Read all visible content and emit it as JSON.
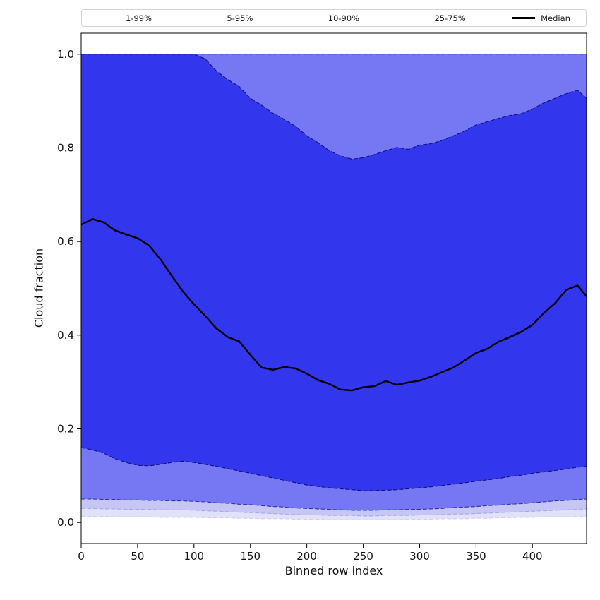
{
  "legend": {
    "items": [
      {
        "label": "1-99%",
        "color": "#d9d9f7",
        "style": "dashed",
        "weight": 1.5
      },
      {
        "label": "5-95%",
        "color": "#bcbcf2",
        "style": "dashed",
        "weight": 1.5
      },
      {
        "label": "10-90%",
        "color": "#6a6cf0",
        "style": "dashed",
        "weight": 1.5
      },
      {
        "label": "25-75%",
        "color": "#3a3ce0",
        "style": "dashed",
        "weight": 1.5
      },
      {
        "label": "Median",
        "color": "#000000",
        "style": "solid",
        "weight": 3
      }
    ]
  },
  "chart_data": {
    "type": "area",
    "title": "",
    "xlabel": "Binned row index",
    "ylabel": "Cloud fraction",
    "xlim": [
      0,
      448
    ],
    "ylim": [
      -0.045,
      1.045
    ],
    "xticks": [
      0,
      50,
      100,
      150,
      200,
      250,
      300,
      350,
      400
    ],
    "yticks": [
      0.0,
      0.2,
      0.4,
      0.6,
      0.8,
      1.0
    ],
    "grid": false,
    "legend_position": "top-outside-horizontal",
    "x": [
      0,
      10,
      20,
      30,
      40,
      50,
      60,
      70,
      80,
      90,
      100,
      110,
      120,
      130,
      140,
      150,
      160,
      170,
      180,
      190,
      200,
      210,
      220,
      230,
      240,
      250,
      260,
      270,
      280,
      290,
      300,
      310,
      320,
      330,
      340,
      350,
      360,
      370,
      380,
      390,
      400,
      410,
      420,
      430,
      440,
      448
    ],
    "bands": [
      {
        "name": "1-99%",
        "low": [
          0.013,
          0.013,
          0.013,
          0.012,
          0.012,
          0.012,
          0.012,
          0.011,
          0.011,
          0.011,
          0.011,
          0.01,
          0.01,
          0.01,
          0.009,
          0.009,
          0.008,
          0.008,
          0.008,
          0.007,
          0.007,
          0.007,
          0.006,
          0.006,
          0.006,
          0.006,
          0.006,
          0.006,
          0.006,
          0.007,
          0.007,
          0.007,
          0.008,
          0.008,
          0.008,
          0.009,
          0.009,
          0.01,
          0.01,
          0.011,
          0.011,
          0.012,
          0.012,
          0.012,
          0.013,
          0.013
        ],
        "high": 1.0,
        "fill": "#e1e1fa",
        "edge": "#cfcff4"
      },
      {
        "name": "5-95%",
        "low": [
          0.03,
          0.03,
          0.029,
          0.029,
          0.028,
          0.028,
          0.028,
          0.027,
          0.027,
          0.027,
          0.026,
          0.025,
          0.024,
          0.023,
          0.022,
          0.021,
          0.02,
          0.019,
          0.018,
          0.017,
          0.016,
          0.016,
          0.015,
          0.015,
          0.015,
          0.014,
          0.014,
          0.015,
          0.015,
          0.015,
          0.016,
          0.016,
          0.017,
          0.018,
          0.018,
          0.019,
          0.02,
          0.021,
          0.022,
          0.023,
          0.024,
          0.025,
          0.026,
          0.027,
          0.028,
          0.029
        ],
        "high": 1.0,
        "fill": "#c6c6f5",
        "edge": "#a6a6ef"
      },
      {
        "name": "10-90%",
        "low": [
          0.05,
          0.05,
          0.049,
          0.049,
          0.048,
          0.048,
          0.047,
          0.047,
          0.046,
          0.046,
          0.045,
          0.044,
          0.042,
          0.041,
          0.039,
          0.038,
          0.036,
          0.034,
          0.033,
          0.031,
          0.03,
          0.029,
          0.028,
          0.027,
          0.026,
          0.026,
          0.026,
          0.027,
          0.027,
          0.028,
          0.028,
          0.029,
          0.03,
          0.032,
          0.033,
          0.034,
          0.036,
          0.037,
          0.039,
          0.04,
          0.042,
          0.044,
          0.046,
          0.047,
          0.049,
          0.05
        ],
        "high": 1.0,
        "fill": "#7678f3",
        "edge": "#33359f"
      },
      {
        "name": "25-75%",
        "low": [
          0.16,
          0.155,
          0.148,
          0.136,
          0.128,
          0.122,
          0.121,
          0.124,
          0.128,
          0.131,
          0.128,
          0.124,
          0.12,
          0.115,
          0.11,
          0.105,
          0.1,
          0.095,
          0.09,
          0.085,
          0.08,
          0.077,
          0.074,
          0.072,
          0.07,
          0.068,
          0.068,
          0.069,
          0.07,
          0.072,
          0.074,
          0.076,
          0.079,
          0.082,
          0.085,
          0.088,
          0.091,
          0.094,
          0.098,
          0.101,
          0.105,
          0.108,
          0.111,
          0.114,
          0.118,
          0.12
        ],
        "high": [
          1.0,
          1.0,
          1.0,
          1.0,
          1.0,
          1.0,
          1.0,
          1.0,
          1.0,
          1.0,
          1.0,
          0.99,
          0.964,
          0.946,
          0.931,
          0.906,
          0.891,
          0.874,
          0.861,
          0.846,
          0.826,
          0.811,
          0.794,
          0.783,
          0.776,
          0.779,
          0.786,
          0.794,
          0.801,
          0.797,
          0.806,
          0.809,
          0.816,
          0.826,
          0.836,
          0.849,
          0.856,
          0.863,
          0.869,
          0.873,
          0.883,
          0.896,
          0.906,
          0.916,
          0.923,
          0.906
        ],
        "fill": "#3236ec",
        "edge": "#10107e"
      }
    ],
    "median": {
      "name": "Median",
      "color": "#000000",
      "values": [
        0.636,
        0.648,
        0.641,
        0.624,
        0.615,
        0.607,
        0.592,
        0.563,
        0.528,
        0.494,
        0.466,
        0.441,
        0.414,
        0.396,
        0.387,
        0.358,
        0.331,
        0.326,
        0.332,
        0.329,
        0.318,
        0.304,
        0.296,
        0.284,
        0.282,
        0.289,
        0.291,
        0.302,
        0.294,
        0.299,
        0.303,
        0.311,
        0.321,
        0.331,
        0.346,
        0.362,
        0.371,
        0.386,
        0.396,
        0.407,
        0.422,
        0.447,
        0.468,
        0.497,
        0.506,
        0.483
      ]
    }
  }
}
